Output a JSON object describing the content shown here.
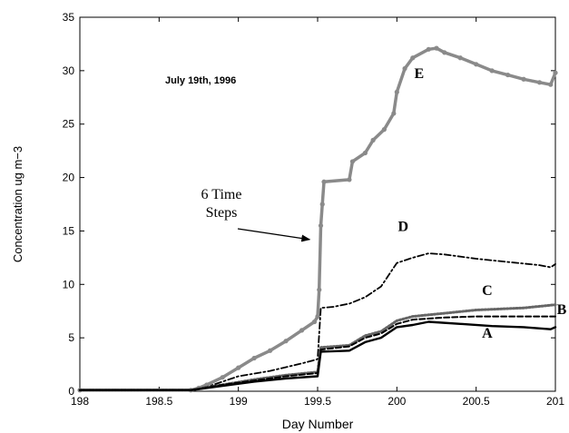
{
  "chart_data": {
    "type": "line",
    "title": "",
    "xlabel": "Day Number",
    "ylabel": "Concentration ug m−3",
    "xlim": [
      198,
      201
    ],
    "ylim": [
      0,
      35
    ],
    "xticks": [
      198,
      198.5,
      199,
      199.5,
      200,
      200.5,
      201
    ],
    "xtick_labels": [
      "198",
      "198.5",
      "199",
      "199.5",
      "200",
      "200.5",
      "201"
    ],
    "yticks": [
      0,
      5,
      10,
      15,
      20,
      25,
      30,
      35
    ],
    "ytick_labels": [
      "0",
      "5",
      "10",
      "15",
      "20",
      "25",
      "30",
      "35"
    ],
    "grid": false,
    "legend": "none",
    "date_text": "July 19th, 1996",
    "annotation": {
      "text_lines": [
        "6 Time",
        "Steps"
      ],
      "arrow_tip": {
        "x": 199.45,
        "y": 14.2
      }
    },
    "series": [
      {
        "name": "E",
        "color": "#8a8a8a",
        "style": "solid-markers",
        "points": [
          [
            198,
            0.1
          ],
          [
            198.7,
            0.1
          ],
          [
            198.75,
            0.3
          ],
          [
            198.8,
            0.6
          ],
          [
            198.9,
            1.3
          ],
          [
            199.0,
            2.2
          ],
          [
            199.1,
            3.1
          ],
          [
            199.2,
            3.8
          ],
          [
            199.3,
            4.7
          ],
          [
            199.4,
            5.7
          ],
          [
            199.48,
            6.5
          ],
          [
            199.5,
            7.0
          ],
          [
            199.51,
            9.5
          ],
          [
            199.52,
            15.5
          ],
          [
            199.53,
            17.5
          ],
          [
            199.54,
            19.6
          ],
          [
            199.7,
            19.8
          ],
          [
            199.72,
            21.5
          ],
          [
            199.8,
            22.3
          ],
          [
            199.85,
            23.5
          ],
          [
            199.92,
            24.5
          ],
          [
            199.98,
            26.0
          ],
          [
            200.0,
            28.0
          ],
          [
            200.05,
            30.2
          ],
          [
            200.1,
            31.2
          ],
          [
            200.2,
            32.0
          ],
          [
            200.25,
            32.1
          ],
          [
            200.3,
            31.7
          ],
          [
            200.4,
            31.2
          ],
          [
            200.5,
            30.6
          ],
          [
            200.6,
            30.0
          ],
          [
            200.7,
            29.6
          ],
          [
            200.8,
            29.2
          ],
          [
            200.9,
            28.9
          ],
          [
            200.97,
            28.7
          ],
          [
            201.0,
            29.8
          ]
        ]
      },
      {
        "name": "D",
        "color": "#000000",
        "style": "dashdot",
        "points": [
          [
            198,
            0.1
          ],
          [
            198.7,
            0.1
          ],
          [
            198.8,
            0.4
          ],
          [
            198.9,
            0.9
          ],
          [
            199.0,
            1.4
          ],
          [
            199.2,
            1.9
          ],
          [
            199.4,
            2.6
          ],
          [
            199.5,
            3.0
          ],
          [
            199.52,
            7.8
          ],
          [
            199.6,
            7.9
          ],
          [
            199.7,
            8.2
          ],
          [
            199.8,
            8.8
          ],
          [
            199.9,
            9.8
          ],
          [
            200.0,
            12.0
          ],
          [
            200.1,
            12.5
          ],
          [
            200.2,
            12.9
          ],
          [
            200.3,
            12.8
          ],
          [
            200.5,
            12.4
          ],
          [
            200.7,
            12.1
          ],
          [
            200.9,
            11.8
          ],
          [
            200.97,
            11.6
          ],
          [
            201.0,
            11.9
          ]
        ]
      },
      {
        "name": "C",
        "color": "#666666",
        "style": "dotted",
        "points": [
          [
            198,
            0.1
          ],
          [
            198.7,
            0.1
          ],
          [
            198.9,
            0.6
          ],
          [
            199.1,
            1.1
          ],
          [
            199.3,
            1.5
          ],
          [
            199.5,
            1.8
          ],
          [
            199.52,
            4.1
          ],
          [
            199.7,
            4.3
          ],
          [
            199.8,
            5.2
          ],
          [
            199.9,
            5.6
          ],
          [
            200.0,
            6.6
          ],
          [
            200.1,
            7.0
          ],
          [
            200.3,
            7.3
          ],
          [
            200.5,
            7.6
          ],
          [
            200.8,
            7.8
          ],
          [
            201.0,
            8.1
          ]
        ]
      },
      {
        "name": "B",
        "color": "#000000",
        "style": "dashed",
        "points": [
          [
            198,
            0.1
          ],
          [
            198.7,
            0.1
          ],
          [
            198.9,
            0.6
          ],
          [
            199.1,
            1.0
          ],
          [
            199.3,
            1.4
          ],
          [
            199.5,
            1.7
          ],
          [
            199.52,
            3.9
          ],
          [
            199.7,
            4.2
          ],
          [
            199.8,
            5.0
          ],
          [
            199.9,
            5.4
          ],
          [
            200.0,
            6.3
          ],
          [
            200.1,
            6.7
          ],
          [
            200.3,
            6.9
          ],
          [
            200.5,
            7.0
          ],
          [
            200.8,
            7.0
          ],
          [
            201.0,
            7.0
          ]
        ]
      },
      {
        "name": "A",
        "color": "#000000",
        "style": "solid",
        "points": [
          [
            198,
            0.1
          ],
          [
            198.7,
            0.1
          ],
          [
            198.9,
            0.5
          ],
          [
            199.1,
            0.9
          ],
          [
            199.3,
            1.2
          ],
          [
            199.5,
            1.4
          ],
          [
            199.52,
            3.7
          ],
          [
            199.7,
            3.8
          ],
          [
            199.8,
            4.6
          ],
          [
            199.9,
            5.0
          ],
          [
            200.0,
            6.0
          ],
          [
            200.1,
            6.2
          ],
          [
            200.2,
            6.5
          ],
          [
            200.4,
            6.3
          ],
          [
            200.6,
            6.1
          ],
          [
            200.8,
            6.0
          ],
          [
            200.97,
            5.8
          ],
          [
            201.0,
            6.0
          ]
        ]
      }
    ],
    "series_labels": [
      {
        "text": "E",
        "x": 200.14,
        "y": 29.3
      },
      {
        "text": "D",
        "x": 200.04,
        "y": 15.0
      },
      {
        "text": "C",
        "x": 200.57,
        "y": 9.0
      },
      {
        "text": "B",
        "x": 201.04,
        "y": 7.2
      },
      {
        "text": "A",
        "x": 200.57,
        "y": 5.0
      }
    ]
  }
}
